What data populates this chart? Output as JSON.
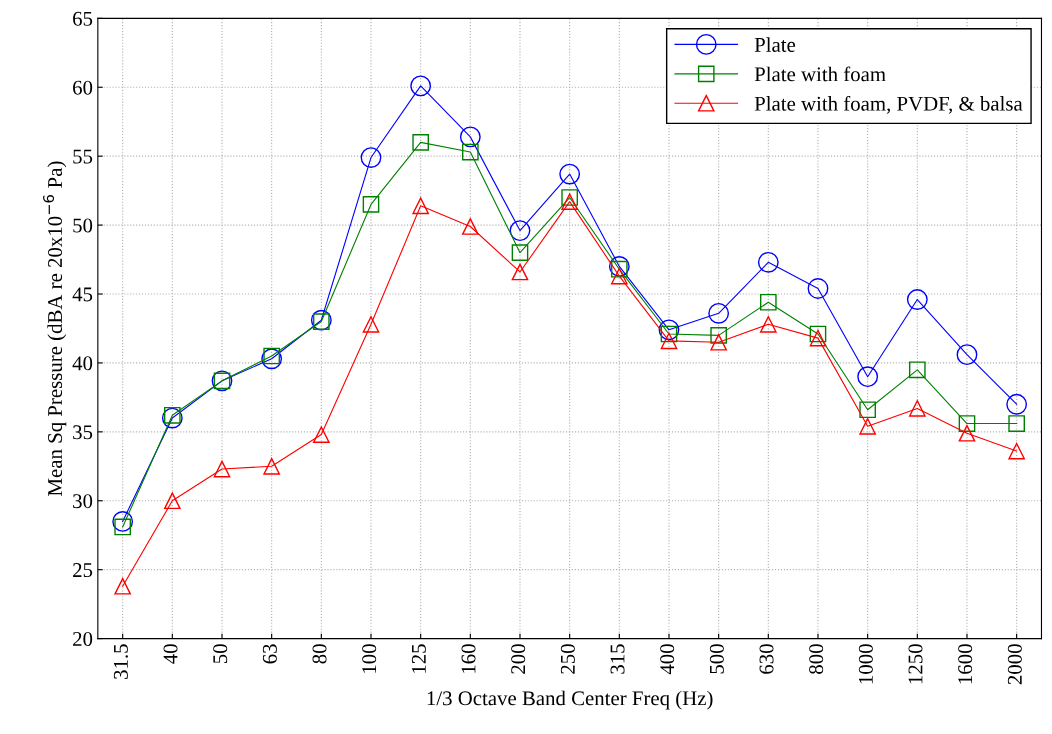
{
  "chart_data": {
    "type": "line",
    "xlabel": "1/3 Octave Band Center Freq (Hz)",
    "ylabel": "Mean Sq Pressure (dBA re 20x10$^{−6}$ Pa)",
    "categories": [
      "31.5",
      "40",
      "50",
      "63",
      "80",
      "100",
      "125",
      "160",
      "200",
      "250",
      "315",
      "400",
      "500",
      "630",
      "800",
      "1000",
      "1250",
      "1600",
      "2000"
    ],
    "series": [
      {
        "name": "Plate",
        "color": "#0000ff",
        "marker": "circle",
        "values": [
          28.5,
          36.0,
          38.7,
          40.3,
          43.1,
          54.9,
          60.1,
          56.4,
          49.6,
          53.7,
          47.0,
          42.4,
          43.6,
          47.3,
          45.4,
          39.0,
          44.6,
          40.6,
          37.0
        ]
      },
      {
        "name": "Plate with foam",
        "color": "#008000",
        "marker": "square",
        "values": [
          28.1,
          36.2,
          38.7,
          40.5,
          43.0,
          51.5,
          56.0,
          55.3,
          48.0,
          52.0,
          46.8,
          42.1,
          42.0,
          44.4,
          42.1,
          36.6,
          39.5,
          35.6,
          35.6
        ]
      },
      {
        "name": "Plate with foam, PVDF, & balsa",
        "color": "#ff0000",
        "marker": "triangle",
        "values": [
          23.8,
          30.0,
          32.3,
          32.5,
          34.8,
          42.8,
          51.4,
          49.9,
          46.6,
          51.7,
          46.3,
          41.6,
          41.5,
          42.8,
          41.8,
          35.4,
          36.7,
          34.9,
          33.6
        ]
      }
    ],
    "ylim": [
      20,
      65
    ],
    "yticks": [
      20,
      25,
      30,
      35,
      40,
      45,
      50,
      55,
      60,
      65
    ],
    "grid": true,
    "legend": "top right",
    "line_style": "solid"
  }
}
